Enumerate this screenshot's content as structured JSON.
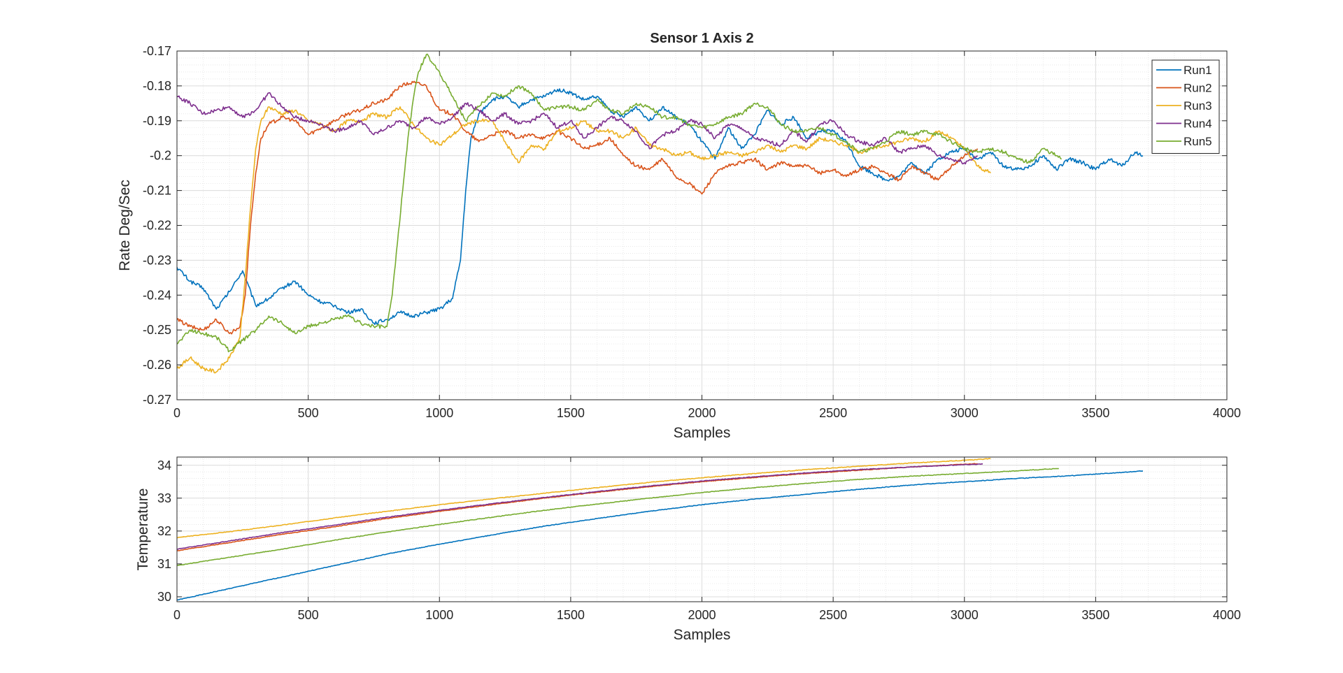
{
  "chart_data": [
    {
      "type": "line",
      "title": "Sensor 1 Axis 2",
      "xlabel": "Samples",
      "ylabel": "Rate Deg/Sec",
      "xlim": [
        0,
        4000
      ],
      "ylim": [
        -0.27,
        -0.17
      ],
      "xticks": [
        0,
        500,
        1000,
        1500,
        2000,
        2500,
        3000,
        3500,
        4000
      ],
      "xtick_labels": [
        "0",
        "500",
        "1000",
        "1500",
        "2000",
        "2500",
        "3000",
        "3500",
        "4000"
      ],
      "yticks": [
        -0.27,
        -0.26,
        -0.25,
        -0.24,
        -0.23,
        -0.22,
        -0.21,
        -0.2,
        -0.19,
        -0.18,
        -0.17
      ],
      "ytick_labels": [
        "-0.27",
        "-0.26",
        "-0.25",
        "-0.24",
        "-0.23",
        "-0.22",
        "-0.21",
        "-0.2",
        "-0.19",
        "-0.18",
        "-0.17"
      ],
      "grid": true,
      "minor_grid": true,
      "legend": "top-right",
      "series": [
        {
          "name": "Run1",
          "color": "#0072BD",
          "x": [
            0,
            50,
            100,
            150,
            200,
            250,
            300,
            350,
            400,
            450,
            500,
            550,
            600,
            650,
            700,
            750,
            800,
            850,
            900,
            950,
            1000,
            1050,
            1080,
            1100,
            1120,
            1150,
            1200,
            1250,
            1300,
            1350,
            1400,
            1450,
            1500,
            1550,
            1600,
            1650,
            1700,
            1750,
            1800,
            1850,
            1900,
            1950,
            2000,
            2050,
            2100,
            2150,
            2200,
            2250,
            2300,
            2350,
            2400,
            2450,
            2500,
            2550,
            2600,
            2650,
            2700,
            2750,
            2800,
            2850,
            2900,
            2950,
            3000,
            3050,
            3100,
            3150,
            3200,
            3250,
            3300,
            3350,
            3400,
            3450,
            3500,
            3550,
            3600,
            3650,
            3680
          ],
          "y": [
            -0.232,
            -0.236,
            -0.238,
            -0.244,
            -0.239,
            -0.233,
            -0.243,
            -0.241,
            -0.238,
            -0.236,
            -0.24,
            -0.242,
            -0.243,
            -0.245,
            -0.244,
            -0.248,
            -0.247,
            -0.245,
            -0.246,
            -0.245,
            -0.244,
            -0.241,
            -0.23,
            -0.21,
            -0.195,
            -0.188,
            -0.184,
            -0.183,
            -0.186,
            -0.184,
            -0.183,
            -0.181,
            -0.182,
            -0.184,
            -0.183,
            -0.187,
            -0.189,
            -0.186,
            -0.19,
            -0.186,
            -0.189,
            -0.191,
            -0.196,
            -0.201,
            -0.192,
            -0.198,
            -0.194,
            -0.187,
            -0.191,
            -0.189,
            -0.195,
            -0.193,
            -0.193,
            -0.196,
            -0.203,
            -0.205,
            -0.207,
            -0.206,
            -0.202,
            -0.205,
            -0.201,
            -0.199,
            -0.198,
            -0.201,
            -0.199,
            -0.203,
            -0.204,
            -0.203,
            -0.2,
            -0.204,
            -0.201,
            -0.202,
            -0.204,
            -0.201,
            -0.203,
            -0.199,
            -0.2
          ]
        },
        {
          "name": "Run2",
          "color": "#D95319",
          "x": [
            0,
            50,
            100,
            150,
            200,
            240,
            260,
            280,
            300,
            320,
            350,
            400,
            450,
            500,
            550,
            600,
            650,
            700,
            750,
            800,
            850,
            900,
            950,
            1000,
            1050,
            1100,
            1150,
            1200,
            1250,
            1300,
            1350,
            1400,
            1450,
            1500,
            1550,
            1600,
            1650,
            1700,
            1750,
            1800,
            1850,
            1900,
            1950,
            2000,
            2050,
            2100,
            2150,
            2200,
            2250,
            2300,
            2350,
            2400,
            2450,
            2500,
            2550,
            2600,
            2650,
            2700,
            2750,
            2800,
            2850,
            2900,
            2950,
            3000,
            3050
          ],
          "y": [
            -0.247,
            -0.249,
            -0.25,
            -0.247,
            -0.251,
            -0.249,
            -0.24,
            -0.22,
            -0.205,
            -0.195,
            -0.191,
            -0.189,
            -0.19,
            -0.194,
            -0.192,
            -0.19,
            -0.188,
            -0.187,
            -0.185,
            -0.184,
            -0.18,
            -0.179,
            -0.18,
            -0.187,
            -0.188,
            -0.193,
            -0.196,
            -0.194,
            -0.193,
            -0.195,
            -0.194,
            -0.195,
            -0.193,
            -0.195,
            -0.198,
            -0.197,
            -0.195,
            -0.2,
            -0.203,
            -0.204,
            -0.201,
            -0.206,
            -0.208,
            -0.211,
            -0.205,
            -0.203,
            -0.202,
            -0.201,
            -0.204,
            -0.202,
            -0.203,
            -0.203,
            -0.205,
            -0.204,
            -0.206,
            -0.204,
            -0.203,
            -0.205,
            -0.207,
            -0.203,
            -0.205,
            -0.207,
            -0.203,
            -0.2,
            -0.198
          ]
        },
        {
          "name": "Run3",
          "color": "#EDB120",
          "x": [
            0,
            50,
            100,
            150,
            200,
            240,
            260,
            280,
            300,
            320,
            350,
            400,
            450,
            500,
            550,
            600,
            650,
            700,
            750,
            800,
            850,
            900,
            950,
            1000,
            1050,
            1100,
            1150,
            1200,
            1250,
            1300,
            1350,
            1400,
            1450,
            1500,
            1550,
            1600,
            1650,
            1700,
            1750,
            1800,
            1850,
            1900,
            1950,
            2000,
            2050,
            2100,
            2150,
            2200,
            2250,
            2300,
            2350,
            2400,
            2450,
            2500,
            2550,
            2600,
            2650,
            2700,
            2750,
            2800,
            2850,
            2900,
            2950,
            3000,
            3050,
            3100
          ],
          "y": [
            -0.261,
            -0.258,
            -0.261,
            -0.262,
            -0.258,
            -0.252,
            -0.235,
            -0.215,
            -0.198,
            -0.19,
            -0.186,
            -0.188,
            -0.187,
            -0.19,
            -0.191,
            -0.193,
            -0.19,
            -0.19,
            -0.188,
            -0.189,
            -0.186,
            -0.191,
            -0.195,
            -0.197,
            -0.194,
            -0.191,
            -0.19,
            -0.19,
            -0.196,
            -0.202,
            -0.197,
            -0.198,
            -0.193,
            -0.192,
            -0.19,
            -0.193,
            -0.193,
            -0.195,
            -0.192,
            -0.197,
            -0.198,
            -0.2,
            -0.199,
            -0.201,
            -0.2,
            -0.199,
            -0.2,
            -0.199,
            -0.197,
            -0.199,
            -0.197,
            -0.198,
            -0.195,
            -0.196,
            -0.197,
            -0.199,
            -0.198,
            -0.197,
            -0.196,
            -0.195,
            -0.196,
            -0.193,
            -0.195,
            -0.198,
            -0.203,
            -0.205
          ]
        },
        {
          "name": "Run4",
          "color": "#7E2F8E",
          "x": [
            0,
            50,
            100,
            150,
            200,
            250,
            300,
            350,
            400,
            450,
            500,
            550,
            600,
            650,
            700,
            750,
            800,
            850,
            900,
            950,
            1000,
            1050,
            1100,
            1150,
            1200,
            1250,
            1300,
            1350,
            1400,
            1450,
            1500,
            1550,
            1600,
            1650,
            1700,
            1750,
            1800,
            1850,
            1900,
            1950,
            2000,
            2050,
            2100,
            2150,
            2200,
            2250,
            2300,
            2350,
            2400,
            2450,
            2500,
            2550,
            2600,
            2650,
            2700,
            2750,
            2800,
            2850,
            2900,
            2950,
            3000,
            3050
          ],
          "y": [
            -0.183,
            -0.185,
            -0.188,
            -0.187,
            -0.186,
            -0.189,
            -0.187,
            -0.182,
            -0.186,
            -0.189,
            -0.19,
            -0.191,
            -0.193,
            -0.192,
            -0.19,
            -0.194,
            -0.192,
            -0.19,
            -0.192,
            -0.189,
            -0.191,
            -0.189,
            -0.185,
            -0.187,
            -0.19,
            -0.188,
            -0.191,
            -0.19,
            -0.188,
            -0.192,
            -0.19,
            -0.195,
            -0.192,
            -0.189,
            -0.19,
            -0.193,
            -0.198,
            -0.194,
            -0.193,
            -0.19,
            -0.191,
            -0.195,
            -0.191,
            -0.192,
            -0.195,
            -0.196,
            -0.197,
            -0.193,
            -0.196,
            -0.191,
            -0.19,
            -0.194,
            -0.196,
            -0.197,
            -0.195,
            -0.199,
            -0.198,
            -0.197,
            -0.2,
            -0.201,
            -0.202,
            -0.2
          ]
        },
        {
          "name": "Run5",
          "color": "#77AC30",
          "x": [
            0,
            50,
            100,
            150,
            200,
            250,
            300,
            350,
            400,
            450,
            500,
            550,
            600,
            650,
            700,
            750,
            800,
            820,
            840,
            860,
            880,
            900,
            920,
            950,
            980,
            1000,
            1050,
            1100,
            1150,
            1200,
            1250,
            1300,
            1350,
            1400,
            1450,
            1500,
            1550,
            1600,
            1650,
            1700,
            1750,
            1800,
            1850,
            1900,
            1950,
            2000,
            2050,
            2100,
            2150,
            2200,
            2250,
            2300,
            2350,
            2400,
            2450,
            2500,
            2550,
            2600,
            2650,
            2700,
            2750,
            2800,
            2850,
            2900,
            2950,
            3000,
            3050,
            3100,
            3150,
            3200,
            3250,
            3300,
            3350,
            3370
          ],
          "y": [
            -0.254,
            -0.25,
            -0.251,
            -0.252,
            -0.256,
            -0.253,
            -0.25,
            -0.246,
            -0.248,
            -0.251,
            -0.249,
            -0.248,
            -0.247,
            -0.246,
            -0.248,
            -0.249,
            -0.249,
            -0.24,
            -0.225,
            -0.21,
            -0.195,
            -0.184,
            -0.176,
            -0.171,
            -0.174,
            -0.176,
            -0.183,
            -0.19,
            -0.186,
            -0.182,
            -0.183,
            -0.18,
            -0.182,
            -0.187,
            -0.186,
            -0.186,
            -0.187,
            -0.184,
            -0.187,
            -0.188,
            -0.185,
            -0.186,
            -0.189,
            -0.189,
            -0.191,
            -0.192,
            -0.191,
            -0.189,
            -0.188,
            -0.185,
            -0.186,
            -0.191,
            -0.193,
            -0.193,
            -0.192,
            -0.194,
            -0.196,
            -0.199,
            -0.198,
            -0.196,
            -0.193,
            -0.194,
            -0.193,
            -0.194,
            -0.196,
            -0.198,
            -0.199,
            -0.198,
            -0.199,
            -0.201,
            -0.202,
            -0.198,
            -0.2,
            -0.201
          ]
        }
      ]
    },
    {
      "type": "line",
      "title": "",
      "xlabel": "Samples",
      "ylabel": "Temperature",
      "xlim": [
        0,
        4000
      ],
      "ylim": [
        29.85,
        34.25
      ],
      "xticks": [
        0,
        500,
        1000,
        1500,
        2000,
        2500,
        3000,
        3500,
        4000
      ],
      "xtick_labels": [
        "0",
        "500",
        "1000",
        "1500",
        "2000",
        "2500",
        "3000",
        "3500",
        "4000"
      ],
      "yticks": [
        30,
        31,
        32,
        33,
        34
      ],
      "ytick_labels": [
        "30",
        "31",
        "32",
        "33",
        "34"
      ],
      "grid": true,
      "minor_grid": true,
      "series": [
        {
          "color": "#0072BD",
          "x": [
            0,
            200,
            400,
            600,
            800,
            1000,
            1200,
            1400,
            1600,
            1800,
            2000,
            2200,
            2400,
            2600,
            2800,
            3000,
            3200,
            3400,
            3600,
            3680
          ],
          "y": [
            29.9,
            30.25,
            30.6,
            30.95,
            31.3,
            31.6,
            31.88,
            32.15,
            32.38,
            32.6,
            32.8,
            32.97,
            33.12,
            33.27,
            33.4,
            33.5,
            33.6,
            33.68,
            33.78,
            33.83
          ]
        },
        {
          "color": "#D95319",
          "x": [
            0,
            200,
            400,
            600,
            800,
            1000,
            1200,
            1400,
            1600,
            1800,
            2000,
            2200,
            2400,
            2600,
            2800,
            3000,
            3050
          ],
          "y": [
            31.4,
            31.65,
            31.9,
            32.13,
            32.38,
            32.6,
            32.8,
            33.0,
            33.18,
            33.35,
            33.5,
            33.63,
            33.75,
            33.85,
            33.95,
            34.03,
            34.05
          ]
        },
        {
          "color": "#EDB120",
          "x": [
            0,
            200,
            400,
            600,
            800,
            1000,
            1200,
            1400,
            1600,
            1800,
            2000,
            2200,
            2400,
            2600,
            2800,
            3000,
            3100
          ],
          "y": [
            31.8,
            31.98,
            32.18,
            32.4,
            32.6,
            32.8,
            32.98,
            33.15,
            33.32,
            33.48,
            33.62,
            33.75,
            33.87,
            33.97,
            34.07,
            34.15,
            34.2
          ]
        },
        {
          "color": "#7E2F8E",
          "x": [
            0,
            200,
            400,
            600,
            800,
            1000,
            1200,
            1400,
            1600,
            1800,
            2000,
            2200,
            2400,
            2600,
            2800,
            3000,
            3070
          ],
          "y": [
            31.45,
            31.7,
            31.95,
            32.18,
            32.42,
            32.63,
            32.83,
            33.02,
            33.2,
            33.37,
            33.52,
            33.65,
            33.77,
            33.87,
            33.95,
            34.02,
            34.04
          ]
        },
        {
          "color": "#77AC30",
          "x": [
            0,
            200,
            400,
            600,
            800,
            1000,
            1200,
            1400,
            1600,
            1800,
            2000,
            2200,
            2400,
            2600,
            2800,
            3000,
            3200,
            3360
          ],
          "y": [
            30.95,
            31.2,
            31.45,
            31.72,
            31.97,
            32.2,
            32.42,
            32.63,
            32.82,
            33.0,
            33.17,
            33.32,
            33.45,
            33.57,
            33.67,
            33.75,
            33.83,
            33.9
          ]
        }
      ]
    }
  ]
}
